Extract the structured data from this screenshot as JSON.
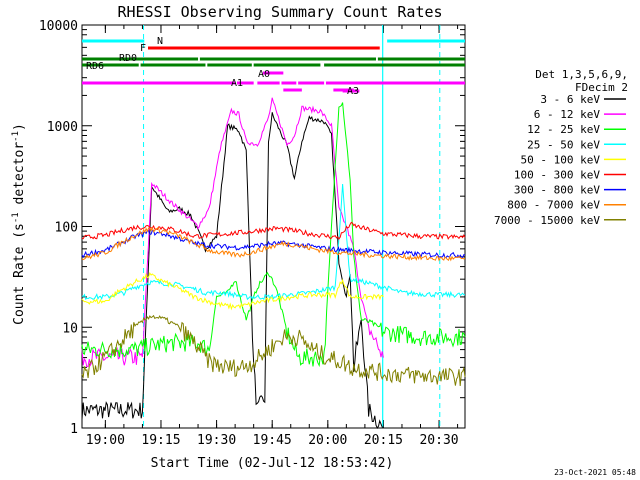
{
  "chart_data": {
    "type": "line",
    "title": "RHESSI Observing Summary Count Rates",
    "xlabel": "Start Time (02-Jul-12 18:53:42)",
    "ylabel_main": "Count Rate (s",
    "ylabel_sup1": "-1",
    "ylabel_mid": " detector",
    "ylabel_sup2": "-1",
    "ylabel_end": ")",
    "yscale": "log",
    "xlim": [
      -6.3,
      97
    ],
    "ylim": [
      1,
      10000
    ],
    "xticks": [
      {
        "v": 0,
        "label": "19:00"
      },
      {
        "v": 15,
        "label": "19:15"
      },
      {
        "v": 30,
        "label": "19:30"
      },
      {
        "v": 45,
        "label": "19:45"
      },
      {
        "v": 60,
        "label": "20:00"
      },
      {
        "v": 75,
        "label": "20:15"
      },
      {
        "v": 90,
        "label": "20:30"
      }
    ],
    "yticks": [
      {
        "v": 1,
        "label": "1"
      },
      {
        "v": 10,
        "label": "10"
      },
      {
        "v": 100,
        "label": "100"
      },
      {
        "v": 1000,
        "label": "1000"
      },
      {
        "v": 10000,
        "label": "10000"
      }
    ],
    "legend_header": [
      "Det 1,3,5,6,9,",
      "FDecim 2"
    ],
    "legend_placement": "right",
    "series": [
      {
        "name": "3 - 6 keV",
        "color": "#000000",
        "points": [
          [
            -6.3,
            1.5
          ],
          [
            10,
            1.5
          ],
          [
            12.5,
            250
          ],
          [
            17,
            140
          ],
          [
            20,
            150
          ],
          [
            23,
            130
          ],
          [
            25,
            90
          ],
          [
            27,
            60
          ],
          [
            30,
            80
          ],
          [
            33,
            1000
          ],
          [
            36,
            900
          ],
          [
            38,
            560
          ],
          [
            40,
            4
          ],
          [
            41,
            1.5
          ],
          [
            43,
            2
          ],
          [
            44,
            700
          ],
          [
            45,
            1300
          ],
          [
            47,
            900
          ],
          [
            49,
            630
          ],
          [
            51,
            300
          ],
          [
            53,
            700
          ],
          [
            55,
            1200
          ],
          [
            59,
            1100
          ],
          [
            61,
            800
          ],
          [
            63,
            45
          ],
          [
            65,
            20
          ],
          [
            66,
            35
          ],
          [
            67,
            4
          ],
          [
            68,
            7
          ],
          [
            69,
            12
          ],
          [
            71,
            1.5
          ],
          [
            75,
            1
          ]
        ]
      },
      {
        "name": "6 - 12 keV",
        "color": "#ff00ff",
        "points": [
          [
            -6.3,
            5
          ],
          [
            10,
            5
          ],
          [
            12.5,
            270
          ],
          [
            18,
            170
          ],
          [
            25,
            100
          ],
          [
            28,
            150
          ],
          [
            31,
            600
          ],
          [
            34,
            1400
          ],
          [
            36,
            1300
          ],
          [
            38,
            700
          ],
          [
            41,
            650
          ],
          [
            44,
            1200
          ],
          [
            45,
            1800
          ],
          [
            47,
            1100
          ],
          [
            49,
            650
          ],
          [
            51,
            800
          ],
          [
            53,
            1500
          ],
          [
            58,
            1400
          ],
          [
            61,
            1000
          ],
          [
            63,
            150
          ],
          [
            65,
            100
          ],
          [
            67,
            60
          ],
          [
            69,
            20
          ],
          [
            71,
            10
          ],
          [
            75,
            5
          ]
        ]
      },
      {
        "name": "12 - 25 keV",
        "color": "#00ff00",
        "points": [
          [
            -6.3,
            6
          ],
          [
            8,
            6
          ],
          [
            12,
            6.5
          ],
          [
            18,
            7
          ],
          [
            25,
            7
          ],
          [
            28,
            6
          ],
          [
            30,
            20
          ],
          [
            33,
            22
          ],
          [
            35,
            30
          ],
          [
            38,
            12
          ],
          [
            41,
            25
          ],
          [
            44,
            35
          ],
          [
            46,
            25
          ],
          [
            49,
            9
          ],
          [
            52,
            5
          ],
          [
            55,
            5
          ],
          [
            59,
            5
          ],
          [
            61,
            100
          ],
          [
            63,
            1600
          ],
          [
            64,
            1700
          ],
          [
            66,
            300
          ],
          [
            67,
            50
          ],
          [
            69,
            12
          ],
          [
            72,
            11
          ],
          [
            75,
            9
          ],
          [
            85,
            8
          ],
          [
            97,
            8
          ]
        ]
      },
      {
        "name": "25 - 50 keV",
        "color": "#00ffff",
        "points": [
          [
            -6.3,
            20
          ],
          [
            0,
            20
          ],
          [
            5,
            22
          ],
          [
            8,
            25
          ],
          [
            12,
            28
          ],
          [
            18,
            27
          ],
          [
            24,
            24
          ],
          [
            27,
            22
          ],
          [
            32,
            22
          ],
          [
            38,
            20
          ],
          [
            45,
            20
          ],
          [
            50,
            21
          ],
          [
            55,
            22
          ],
          [
            60,
            24
          ],
          [
            62,
            25
          ],
          [
            64,
            250
          ],
          [
            66,
            30
          ],
          [
            70,
            28
          ],
          [
            75,
            25
          ],
          [
            80,
            22
          ],
          [
            90,
            21
          ],
          [
            97,
            21
          ]
        ]
      },
      {
        "name": "50 - 100 keV",
        "color": "#ffff00",
        "points": [
          [
            -6.3,
            18
          ],
          [
            0,
            18
          ],
          [
            3,
            22
          ],
          [
            8,
            28
          ],
          [
            12,
            33
          ],
          [
            16,
            28
          ],
          [
            20,
            24
          ],
          [
            24,
            20
          ],
          [
            30,
            17
          ],
          [
            34,
            16
          ],
          [
            38,
            16.5
          ],
          [
            42,
            18
          ],
          [
            46,
            19
          ],
          [
            50,
            20
          ],
          [
            56,
            21
          ],
          [
            60,
            21
          ],
          [
            62,
            21
          ],
          [
            64,
            30
          ],
          [
            66,
            20
          ],
          [
            75,
            20
          ]
        ]
      },
      {
        "name": "100 - 300 keV",
        "color": "#ff0000",
        "points": [
          [
            -6.3,
            77
          ],
          [
            0,
            82
          ],
          [
            4,
            90
          ],
          [
            8,
            98
          ],
          [
            12,
            100
          ],
          [
            16,
            97
          ],
          [
            20,
            90
          ],
          [
            24,
            80
          ],
          [
            28,
            82
          ],
          [
            33,
            85
          ],
          [
            38,
            88
          ],
          [
            42,
            92
          ],
          [
            46,
            96
          ],
          [
            50,
            92
          ],
          [
            55,
            85
          ],
          [
            60,
            80
          ],
          [
            63,
            78
          ],
          [
            66,
            105
          ],
          [
            70,
            95
          ],
          [
            75,
            85
          ],
          [
            85,
            80
          ],
          [
            97,
            78
          ]
        ]
      },
      {
        "name": "300 - 800 keV",
        "color": "#0000ff",
        "points": [
          [
            -6.3,
            52
          ],
          [
            0,
            58
          ],
          [
            4,
            68
          ],
          [
            8,
            80
          ],
          [
            12,
            88
          ],
          [
            16,
            84
          ],
          [
            20,
            76
          ],
          [
            24,
            68
          ],
          [
            28,
            65
          ],
          [
            32,
            63
          ],
          [
            36,
            62
          ],
          [
            40,
            64
          ],
          [
            44,
            67
          ],
          [
            48,
            68
          ],
          [
            52,
            66
          ],
          [
            56,
            63
          ],
          [
            60,
            60
          ],
          [
            66,
            58
          ],
          [
            72,
            56
          ],
          [
            80,
            54
          ],
          [
            90,
            52
          ],
          [
            97,
            52
          ]
        ]
      },
      {
        "name": "800 - 7000 keV",
        "color": "#ff8000",
        "points": [
          [
            -6.3,
            48
          ],
          [
            0,
            55
          ],
          [
            4,
            68
          ],
          [
            8,
            82
          ],
          [
            12,
            95
          ],
          [
            16,
            90
          ],
          [
            20,
            80
          ],
          [
            24,
            68
          ],
          [
            28,
            58
          ],
          [
            32,
            54
          ],
          [
            36,
            52
          ],
          [
            40,
            56
          ],
          [
            44,
            62
          ],
          [
            48,
            68
          ],
          [
            52,
            65
          ],
          [
            56,
            60
          ],
          [
            60,
            57
          ],
          [
            66,
            54
          ],
          [
            72,
            52
          ],
          [
            80,
            50
          ],
          [
            90,
            48
          ],
          [
            97,
            48
          ]
        ]
      },
      {
        "name": "7000 - 15000 keV",
        "color": "#808000",
        "points": [
          [
            -6.3,
            3.2
          ],
          [
            0,
            5
          ],
          [
            4,
            7
          ],
          [
            8,
            10
          ],
          [
            12,
            13
          ],
          [
            16,
            12
          ],
          [
            20,
            10
          ],
          [
            24,
            7
          ],
          [
            28,
            4.5
          ],
          [
            32,
            4
          ],
          [
            36,
            4
          ],
          [
            40,
            4.5
          ],
          [
            44,
            6
          ],
          [
            48,
            8
          ],
          [
            52,
            8
          ],
          [
            56,
            6
          ],
          [
            60,
            5
          ],
          [
            64,
            4.5
          ],
          [
            66,
            4
          ],
          [
            70,
            3.8
          ],
          [
            75,
            3.5
          ],
          [
            85,
            3.3
          ],
          [
            97,
            3.2
          ]
        ]
      }
    ],
    "flags": [
      {
        "name": "N",
        "color": "#00ffff",
        "y_level": 1,
        "segments": [
          [
            -6.3,
            10.5
          ],
          [
            76,
            97
          ]
        ]
      },
      {
        "name": "F",
        "color": "#ff0000",
        "y_level": 2,
        "segments": [
          [
            11.5,
            74
          ]
        ]
      },
      {
        "name": "RD0",
        "color": "#008000",
        "y_level": 3,
        "segments": [
          [
            -6.3,
            25
          ],
          [
            25.5,
            73
          ],
          [
            73.5,
            97
          ]
        ]
      },
      {
        "name": "RD6",
        "color": "#008000",
        "y_level": 4,
        "segments": [
          [
            -6.3,
            9
          ],
          [
            9.5,
            27
          ],
          [
            27.5,
            39.5
          ],
          [
            40,
            58
          ],
          [
            59,
            97
          ]
        ]
      },
      {
        "name": "A0",
        "color": "#ff00ff",
        "y_level": 5,
        "segments": [
          [
            42.5,
            48
          ]
        ]
      },
      {
        "name": "A1",
        "color": "#ff00ff",
        "y_level": 6,
        "segments": [
          [
            -6.3,
            35
          ],
          [
            35.5,
            40
          ],
          [
            41,
            47
          ],
          [
            47.5,
            51.5
          ],
          [
            52,
            59
          ],
          [
            59.5,
            97
          ]
        ]
      },
      {
        "name": "A3",
        "color": "#ff00ff",
        "y_level": 7,
        "segments": [
          [
            48,
            53
          ],
          [
            61.5,
            67
          ]
        ]
      },
      {
        "name": "",
        "color": "#ff00ff",
        "y_level": 8,
        "segments": [
          [
            64,
            68.5
          ]
        ]
      }
    ],
    "dashed_vlines": [
      {
        "x": 10.3,
        "color": "#00ffff"
      },
      {
        "x": 90.2,
        "color": "#00ffff"
      }
    ],
    "solid_vlines": [
      {
        "x": 74.8,
        "color": "#00ffff"
      }
    ],
    "footer_timestamp": "23-Oct-2021 05:48"
  }
}
